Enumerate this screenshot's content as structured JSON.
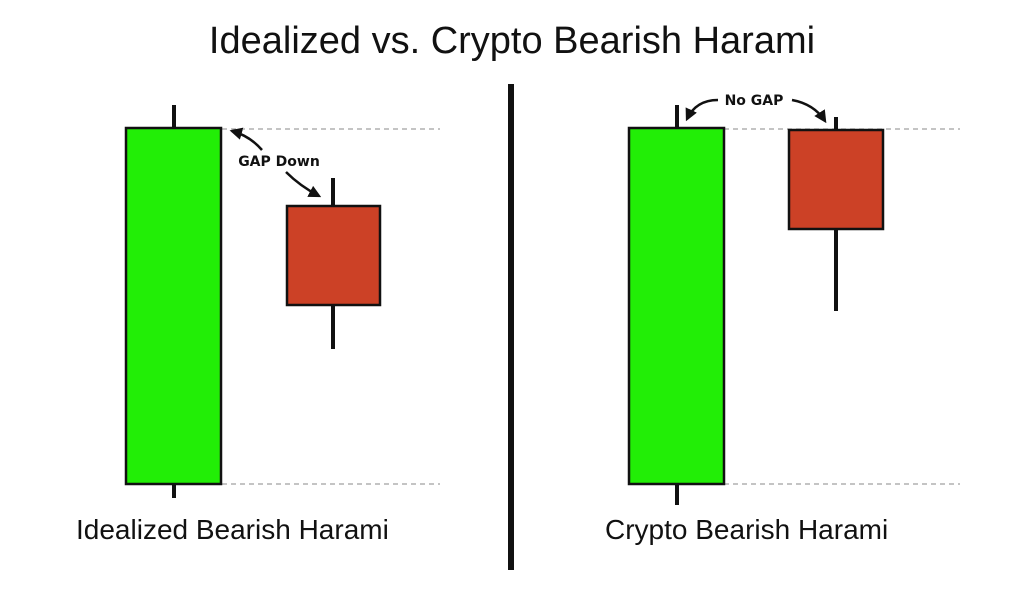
{
  "title": "Idealized vs. Crypto Bearish Harami",
  "panels": [
    {
      "caption": "Idealized Bearish Harami",
      "annotation": "GAP Down"
    },
    {
      "caption": "Crypto Bearish Harami",
      "annotation": "No GAP"
    }
  ],
  "colors": {
    "bullish": "#22ee06",
    "bearish": "#cc4126",
    "outline": "#111111",
    "guide": "#888888"
  }
}
